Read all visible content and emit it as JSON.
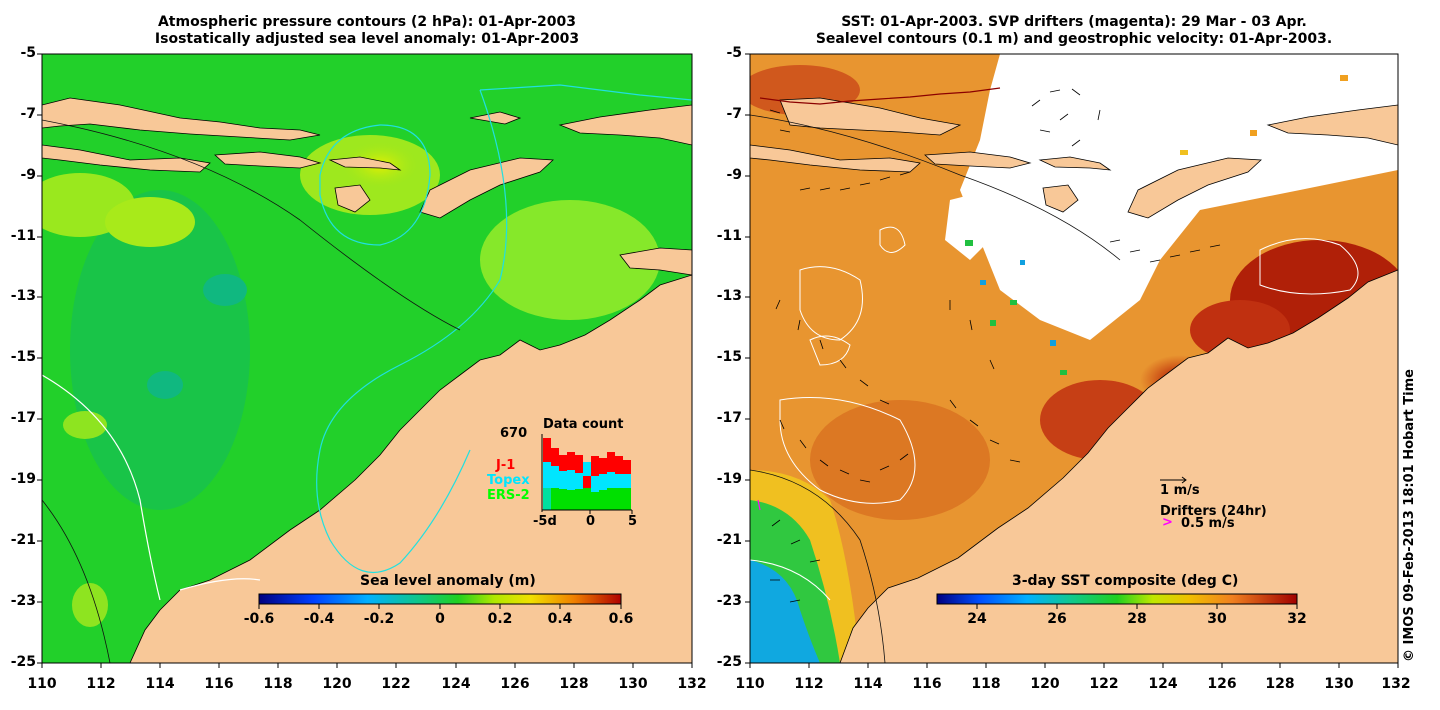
{
  "left_panel": {
    "title_line1": "Atmospheric pressure contours (2 hPa): 01-Apr-2003",
    "title_line2": "Isostatically adjusted sea level anomaly: 01-Apr-2003",
    "y_ticks": [
      "-5",
      "-7",
      "-9",
      "-11",
      "-13",
      "-15",
      "-17",
      "-19",
      "-21",
      "-23",
      "-25"
    ],
    "x_ticks": [
      "110",
      "112",
      "114",
      "116",
      "118",
      "120",
      "122",
      "124",
      "126",
      "128",
      "130",
      "132"
    ],
    "colorbar": {
      "title": "Sea level anomaly (m)",
      "ticks": [
        "-0.6",
        "-0.4",
        "-0.2",
        "0",
        "0.2",
        "0.4",
        "0.6"
      ],
      "range": [
        -0.6,
        0.6
      ]
    },
    "data_count": {
      "title": "Data count",
      "max_label": "670",
      "series_labels": [
        "J-1",
        "Topex",
        "ERS-2"
      ],
      "series_colors": [
        "#ff0000",
        "#00e5ff",
        "#00ff00"
      ],
      "x_ticks": [
        "-5d",
        "0",
        "5"
      ]
    }
  },
  "right_panel": {
    "title_line1": "SST: 01-Apr-2003. SVP drifters (magenta): 29 Mar - 03 Apr.",
    "title_line2": "Sealevel contours (0.1 m) and geostrophic velocity: 01-Apr-2003.",
    "y_ticks": [
      "-5",
      "-7",
      "-9",
      "-11",
      "-13",
      "-15",
      "-17",
      "-19",
      "-21",
      "-23",
      "-25"
    ],
    "x_ticks": [
      "110",
      "112",
      "114",
      "116",
      "118",
      "120",
      "122",
      "124",
      "126",
      "128",
      "130",
      "132"
    ],
    "colorbar": {
      "title": "3-day SST composite (deg C)",
      "ticks": [
        "24",
        "26",
        "28",
        "30",
        "32"
      ],
      "range": [
        23,
        32
      ]
    },
    "velocity_scale_label": "1 m/s",
    "drifters_label": "Drifters (24hr)",
    "drifter_symbol": ">",
    "drifter_speed_label": "0.5 m/s"
  },
  "copyright": "© IMOS 09-Feb-2013 18:01 Hobart Time",
  "colors": {
    "land": "#f8c898",
    "sla_background": "#22d02a",
    "sst_background": "#e89530",
    "drifter_magenta": "#ff00ff"
  }
}
